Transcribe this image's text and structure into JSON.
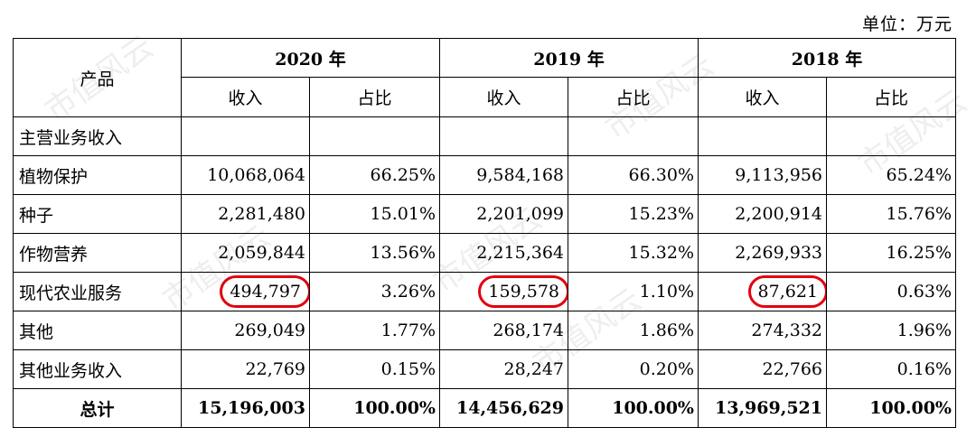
{
  "unit_label": "单位：万元",
  "watermark": "市值风云",
  "header": {
    "product": "产品",
    "years": [
      "2020 年",
      "2019 年",
      "2018 年"
    ],
    "revenue": "收入",
    "share": "占比"
  },
  "rows": [
    {
      "name": "主营业务收入",
      "section": true
    },
    {
      "name": "植物保护",
      "v2020": "10,068,064",
      "p2020": "66.25%",
      "v2019": "9,584,168",
      "p2019": "66.30%",
      "v2018": "9,113,956",
      "p2018": "65.24%"
    },
    {
      "name": "种子",
      "v2020": "2,281,480",
      "p2020": "15.01%",
      "v2019": "2,201,099",
      "p2019": "15.23%",
      "v2018": "2,200,914",
      "p2018": "15.76%"
    },
    {
      "name": "作物营养",
      "v2020": "2,059,844",
      "p2020": "13.56%",
      "v2019": "2,215,364",
      "p2019": "15.32%",
      "v2018": "2,269,933",
      "p2018": "16.25%"
    },
    {
      "name": "现代农业服务",
      "highlight": true,
      "v2020": "494,797",
      "p2020": "3.26%",
      "v2019": "159,578",
      "p2019": "1.10%",
      "v2018": "87,621",
      "p2018": "0.63%"
    },
    {
      "name": "其他",
      "v2020": "269,049",
      "p2020": "1.77%",
      "v2019": "268,174",
      "p2019": "1.86%",
      "v2018": "274,332",
      "p2018": "1.96%"
    },
    {
      "name": "其他业务收入",
      "v2020": "22,769",
      "p2020": "0.15%",
      "v2019": "28,247",
      "p2019": "0.20%",
      "v2018": "22,766",
      "p2018": "0.16%"
    }
  ],
  "total": {
    "name": "总计",
    "v2020": "15,196,003",
    "p2020": "100.00%",
    "v2019": "14,456,629",
    "p2019": "100.00%",
    "v2018": "13,969,521",
    "p2018": "100.00%"
  },
  "colors": {
    "highlight_circle": "#e2000f"
  }
}
